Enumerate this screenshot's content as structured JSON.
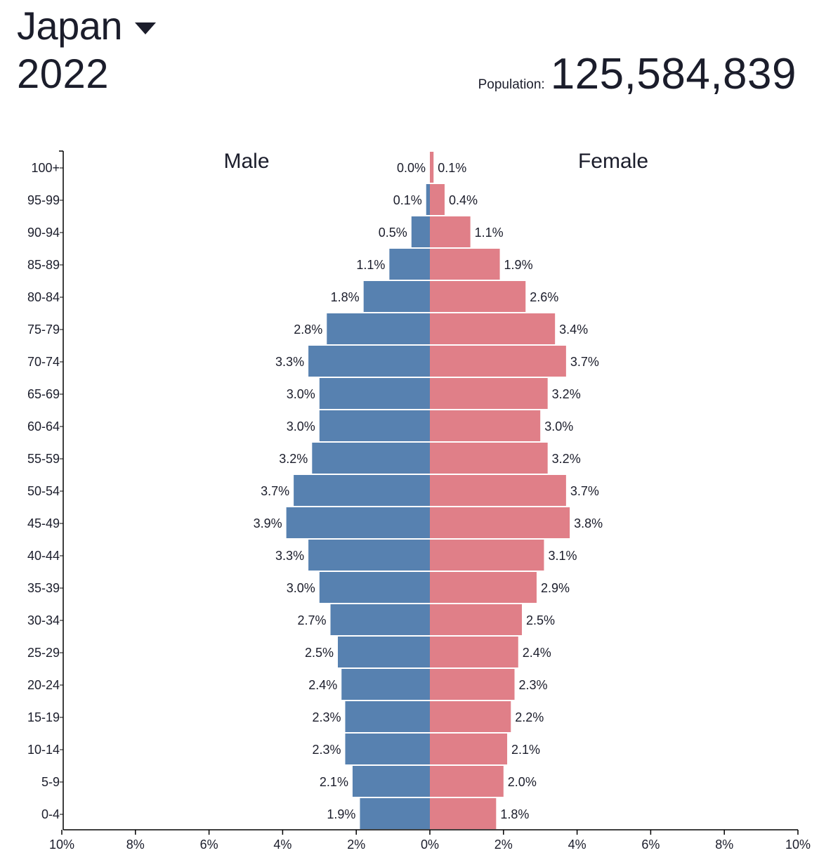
{
  "header": {
    "country": "Japan",
    "year": "2022",
    "population_label": "Population:",
    "population_value": "125,584,839"
  },
  "icons": {
    "country_dropdown": "caret-down-icon"
  },
  "colors": {
    "male": "#5781b0",
    "female": "#e07f88",
    "text": "#1b1d2b",
    "axis": "#000000"
  },
  "chart_data": {
    "type": "bar",
    "orientation": "horizontal-pyramid",
    "series_labels": {
      "male": "Male",
      "female": "Female"
    },
    "categories": [
      "100+",
      "95-99",
      "90-94",
      "85-89",
      "80-84",
      "75-79",
      "70-74",
      "65-69",
      "60-64",
      "55-59",
      "50-54",
      "45-49",
      "40-44",
      "35-39",
      "30-34",
      "25-29",
      "20-24",
      "15-19",
      "10-14",
      "5-9",
      "0-4"
    ],
    "series": [
      {
        "name": "Male",
        "values": [
          0.0,
          0.1,
          0.5,
          1.1,
          1.8,
          2.8,
          3.3,
          3.0,
          3.0,
          3.2,
          3.7,
          3.9,
          3.3,
          3.0,
          2.7,
          2.5,
          2.4,
          2.3,
          2.3,
          2.1,
          1.9
        ],
        "labels": [
          "0.0%",
          "0.1%",
          "0.5%",
          "1.1%",
          "1.8%",
          "2.8%",
          "3.3%",
          "3.0%",
          "3.0%",
          "3.2%",
          "3.7%",
          "3.9%",
          "3.3%",
          "3.0%",
          "2.7%",
          "2.5%",
          "2.4%",
          "2.3%",
          "2.3%",
          "2.1%",
          "1.9%"
        ]
      },
      {
        "name": "Female",
        "values": [
          0.1,
          0.4,
          1.1,
          1.9,
          2.6,
          3.4,
          3.7,
          3.2,
          3.0,
          3.2,
          3.7,
          3.8,
          3.1,
          2.9,
          2.5,
          2.4,
          2.3,
          2.2,
          2.1,
          2.0,
          1.8
        ],
        "labels": [
          "0.1%",
          "0.4%",
          "1.1%",
          "1.9%",
          "2.6%",
          "3.4%",
          "3.7%",
          "3.2%",
          "3.0%",
          "3.2%",
          "3.7%",
          "3.8%",
          "3.1%",
          "2.9%",
          "2.5%",
          "2.4%",
          "2.3%",
          "2.2%",
          "2.1%",
          "2.0%",
          "1.8%"
        ]
      }
    ],
    "x_ticks": [
      {
        "value": -10,
        "label": "10%"
      },
      {
        "value": -8,
        "label": "8%"
      },
      {
        "value": -6,
        "label": "6%"
      },
      {
        "value": -4,
        "label": "4%"
      },
      {
        "value": -2,
        "label": "2%"
      },
      {
        "value": 0,
        "label": "0%"
      },
      {
        "value": 2,
        "label": "2%"
      },
      {
        "value": 4,
        "label": "4%"
      },
      {
        "value": 6,
        "label": "6%"
      },
      {
        "value": 8,
        "label": "8%"
      },
      {
        "value": 10,
        "label": "10%"
      }
    ],
    "xlim": [
      -10,
      10
    ],
    "grid": false
  }
}
